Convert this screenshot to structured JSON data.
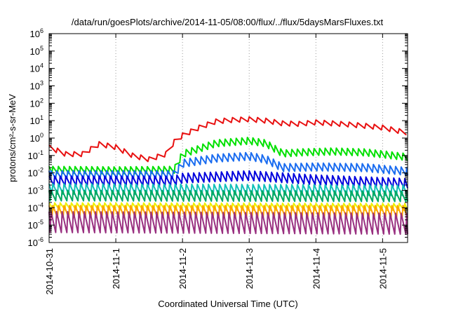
{
  "chart_data": {
    "type": "line",
    "title": "/data/run/goesPlots/archive/2014-11-05/08:00/flux/../flux/5daysMarsFluxes.txt",
    "xlabel": "Coordinated Universal Time (UTC)",
    "ylabel": "protons/cm²-s-sr-MeV",
    "y_scale": "log",
    "ylim": [
      1e-06,
      1000000.0
    ],
    "xlim": [
      "2014-10-31T00:00",
      "2014-11-05T09:00"
    ],
    "x_ticks": [
      "2014-10-31",
      "2014-11-1",
      "2014-11-2",
      "2014-11-3",
      "2014-11-4",
      "2014-11-5"
    ],
    "y_ticks": [
      {
        "value": 1e-06,
        "base": "10",
        "exp": "-6"
      },
      {
        "value": 1e-05,
        "base": "10",
        "exp": "-5"
      },
      {
        "value": 0.0001,
        "base": "10",
        "exp": "-4"
      },
      {
        "value": 0.001,
        "base": "10",
        "exp": "-3"
      },
      {
        "value": 0.01,
        "base": "10",
        "exp": "-2"
      },
      {
        "value": 0.1,
        "base": "10",
        "exp": "-1"
      },
      {
        "value": 1,
        "base": "10",
        "exp": "0"
      },
      {
        "value": 10,
        "base": "10",
        "exp": "1"
      },
      {
        "value": 100,
        "base": "10",
        "exp": "2"
      },
      {
        "value": 1000,
        "base": "10",
        "exp": "3"
      },
      {
        "value": 10000,
        "base": "10",
        "exp": "4"
      },
      {
        "value": 100000,
        "base": "10",
        "exp": "5"
      },
      {
        "value": 1000000,
        "base": "10",
        "exp": "6"
      }
    ],
    "grid": {
      "vertical": true,
      "horizontal": false,
      "style": "dotted"
    },
    "series": [
      {
        "color": "#e81010",
        "sawtooth_hours": 3,
        "base": [
          [
            "10-31T00:00",
            0.3
          ],
          [
            "10-31T06:00",
            0.12
          ],
          [
            "10-31T12:00",
            0.12
          ],
          [
            "10-31T18:00",
            0.45
          ],
          [
            "11-01T00:00",
            0.3
          ],
          [
            "11-01T06:00",
            0.1
          ],
          [
            "11-01T12:00",
            0.06
          ],
          [
            "11-01T18:00",
            0.12
          ],
          [
            "11-01T21:00",
            0.6
          ],
          [
            "11-02T00:00",
            1.4
          ],
          [
            "11-02T06:00",
            4
          ],
          [
            "11-02T12:00",
            9
          ],
          [
            "11-02T18:00",
            11
          ],
          [
            "11-03T00:00",
            12
          ],
          [
            "11-03T06:00",
            10
          ],
          [
            "11-03T12:00",
            7
          ],
          [
            "11-03T18:00",
            6.5
          ],
          [
            "11-04T00:00",
            8
          ],
          [
            "11-04T06:00",
            7
          ],
          [
            "11-04T12:00",
            6
          ],
          [
            "11-04T18:00",
            5
          ],
          [
            "11-05T00:00",
            4
          ],
          [
            "11-05T09:00",
            2
          ]
        ],
        "amplitude_decades": 0.28
      },
      {
        "color": "#00e000",
        "sawtooth_hours": 2,
        "base": [
          [
            "10-31T00:00",
            0.015
          ],
          [
            "11-01T00:00",
            0.014
          ],
          [
            "11-01T21:00",
            0.015
          ],
          [
            "11-02T00:00",
            0.12
          ],
          [
            "11-02T12:00",
            0.5
          ],
          [
            "11-03T00:00",
            0.7
          ],
          [
            "11-03T06:00",
            0.5
          ],
          [
            "11-03T12:00",
            0.13
          ],
          [
            "11-03T18:00",
            0.15
          ],
          [
            "11-04T06:00",
            0.17
          ],
          [
            "11-04T18:00",
            0.15
          ],
          [
            "11-05T09:00",
            0.08
          ]
        ],
        "amplitude_decades": 0.4
      },
      {
        "color": "#1a6cf0",
        "sawtooth_hours": 2,
        "base": [
          [
            "10-31T00:00",
            0.008
          ],
          [
            "11-01T00:00",
            0.008
          ],
          [
            "11-01T21:00",
            0.008
          ],
          [
            "11-02T00:00",
            0.035
          ],
          [
            "11-02T12:00",
            0.07
          ],
          [
            "11-03T00:00",
            0.09
          ],
          [
            "11-03T06:00",
            0.06
          ],
          [
            "11-03T12:00",
            0.02
          ],
          [
            "11-04T00:00",
            0.022
          ],
          [
            "11-04T18:00",
            0.02
          ],
          [
            "11-05T09:00",
            0.012
          ]
        ],
        "amplitude_decades": 0.45
      },
      {
        "color": "#0000dd",
        "sawtooth_hours": 2,
        "base": [
          [
            "10-31T00:00",
            0.0035
          ],
          [
            "11-01T21:00",
            0.0035
          ],
          [
            "11-02T00:00",
            0.005
          ],
          [
            "11-03T00:00",
            0.007
          ],
          [
            "11-04T00:00",
            0.004
          ],
          [
            "11-05T09:00",
            0.0025
          ]
        ],
        "amplitude_decades": 0.55
      },
      {
        "color": "#12c0b8",
        "sawtooth_hours": 2,
        "base": [
          [
            "10-31T00:00",
            0.0012
          ],
          [
            "11-05T09:00",
            0.001
          ]
        ],
        "amplitude_decades": 0.6
      },
      {
        "color": "#00a860",
        "sawtooth_hours": 2,
        "base": [
          [
            "10-31T00:00",
            0.0005
          ],
          [
            "11-05T09:00",
            0.00045
          ]
        ],
        "amplitude_decades": 0.6
      },
      {
        "color": "#f0f000",
        "sawtooth_hours": 2,
        "base": [
          [
            "10-31T00:00",
            0.00012
          ],
          [
            "11-05T09:00",
            0.00011
          ]
        ],
        "amplitude_decades": 0.4
      },
      {
        "color": "#ffa000",
        "sawtooth_hours": 2,
        "base": [
          [
            "10-31T00:00",
            6e-05
          ],
          [
            "11-05T09:00",
            6e-05
          ]
        ],
        "amplitude_decades": 0.7
      },
      {
        "color": "#993080",
        "sawtooth_hours": 2,
        "base": [
          [
            "10-31T00:00",
            1.5e-05
          ],
          [
            "11-05T09:00",
            1.2e-05
          ]
        ],
        "amplitude_decades": 1.2
      }
    ]
  }
}
